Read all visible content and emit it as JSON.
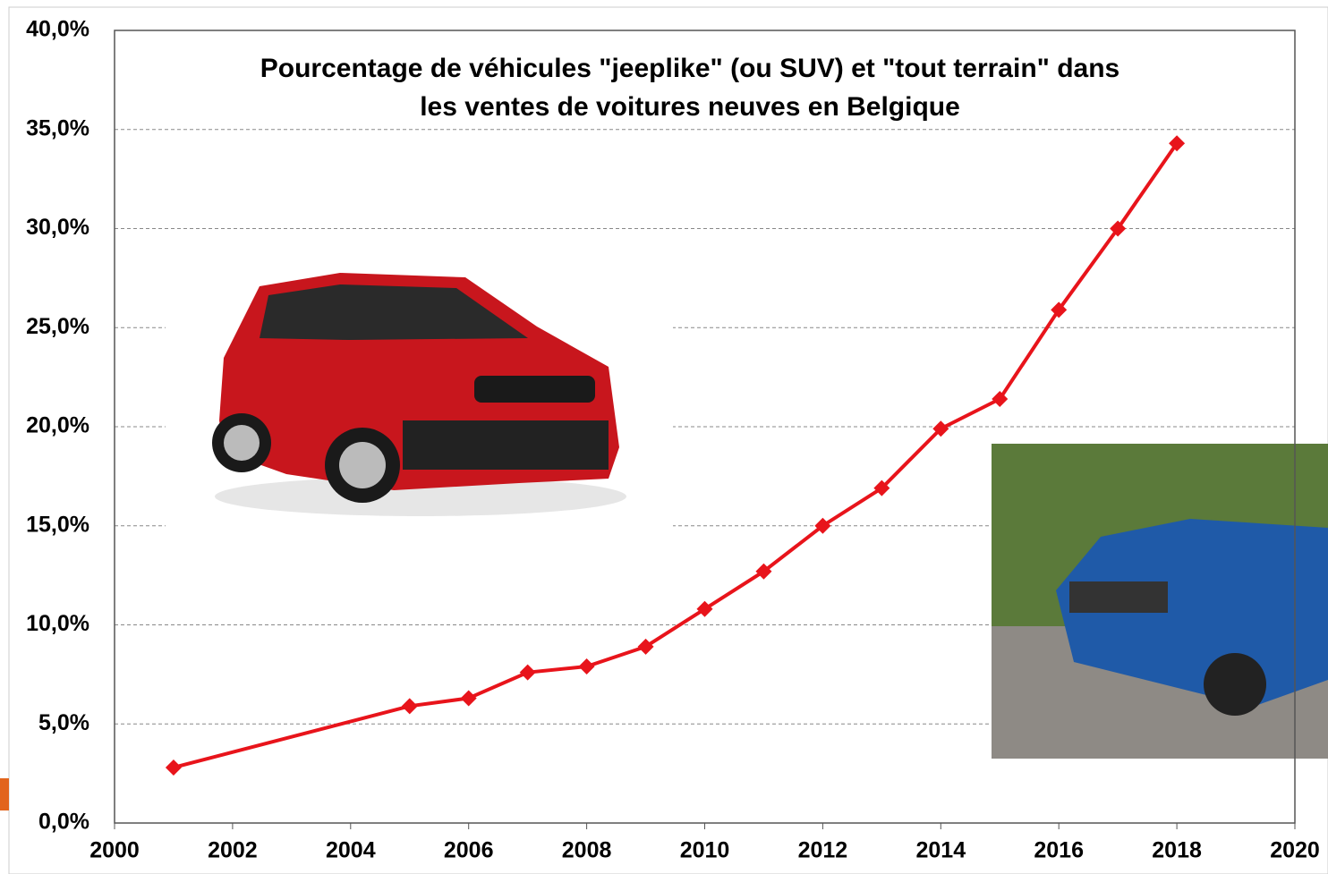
{
  "chart_data": {
    "type": "line",
    "title": [
      "Pourcentage de véhicules \"jeeplike\" (ou SUV) et \"tout terrain\" dans",
      "les ventes de voitures neuves en Belgique"
    ],
    "x": [
      2001,
      2005,
      2006,
      2007,
      2008,
      2009,
      2010,
      2011,
      2012,
      2013,
      2014,
      2015,
      2016,
      2017,
      2018
    ],
    "series": [
      {
        "color": "#e8141b",
        "values": [
          2.8,
          5.9,
          6.3,
          7.6,
          7.9,
          8.9,
          10.8,
          12.7,
          15.0,
          16.9,
          19.9,
          21.4,
          25.9,
          30.0,
          34.3
        ]
      }
    ],
    "xlim": [
      2000,
      2020
    ],
    "xticks": [
      2000,
      2002,
      2004,
      2006,
      2008,
      2010,
      2012,
      2014,
      2016,
      2018,
      2020
    ],
    "ylim": [
      0,
      40
    ],
    "yticks": [
      {
        "value": 0,
        "label": "0,0%"
      },
      {
        "value": 5,
        "label": "5,0%"
      },
      {
        "value": 10,
        "label": "10,0%"
      },
      {
        "value": 15,
        "label": "15,0%"
      },
      {
        "value": 20,
        "label": "20,0%"
      },
      {
        "value": 25,
        "label": "25,0%"
      },
      {
        "value": 30,
        "label": "30,0%"
      },
      {
        "value": 35,
        "label": "35,0%"
      },
      {
        "value": 40,
        "label": "40,0%"
      }
    ],
    "grid": true
  }
}
